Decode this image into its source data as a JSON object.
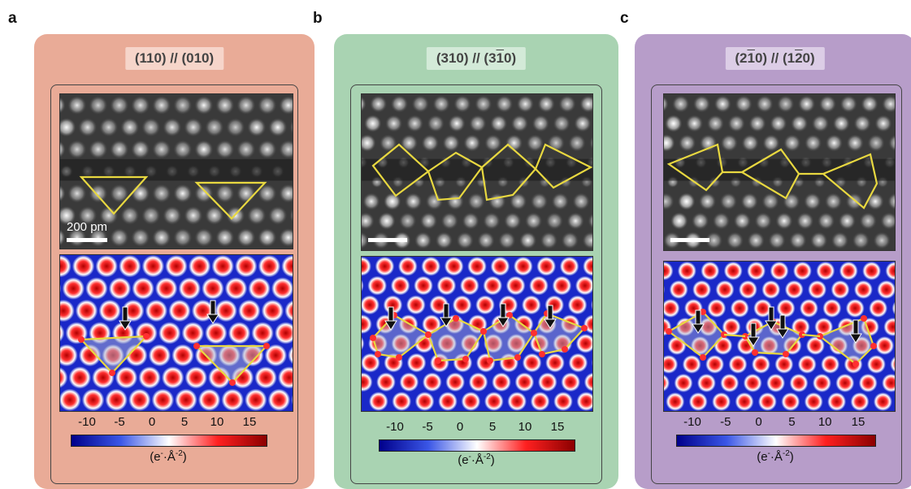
{
  "panels": [
    {
      "id": "a",
      "label": "a",
      "bg": "#e9ab97",
      "header_bg": "#f6d5ca",
      "title_parts": [
        "(110) // (010)"
      ],
      "scale_bar_label": "200 pm",
      "colorbar_ticks": [
        "-10",
        "-5",
        "0",
        "5",
        "10",
        "15"
      ],
      "unit_base": "(e",
      "unit_sup1": "-",
      "unit_mid": "·Å",
      "unit_sup2": "-2",
      "unit_end": ")"
    },
    {
      "id": "b",
      "label": "b",
      "bg": "#a9d3b2",
      "header_bg": "#d3ead8",
      "title_pre": "(310) // (3",
      "title_over": "1",
      "title_post": "0)",
      "scale_bar_label": "",
      "colorbar_ticks": [
        "-10",
        "-5",
        "0",
        "5",
        "10",
        "15"
      ],
      "unit_base": "(e",
      "unit_sup1": "-",
      "unit_mid": "·Å",
      "unit_sup2": "-2",
      "unit_end": ")"
    },
    {
      "id": "c",
      "label": "c",
      "bg": "#b79dc9",
      "header_bg": "#dccde6",
      "title_pre1": "(2",
      "title_over1": "1",
      "title_mid": "0) // (1",
      "title_over2": "2",
      "title_post": "0)",
      "scale_bar_label": "",
      "colorbar_ticks": [
        "-10",
        "-5",
        "0",
        "5",
        "10",
        "15"
      ],
      "unit_base": "(e",
      "unit_sup1": "-",
      "unit_mid": "·Å",
      "unit_sup2": "-2",
      "unit_end": ")"
    }
  ],
  "colorbar_colors": [
    "#00008b",
    "#3a56e6",
    "#ffffff",
    "#ff2020",
    "#8b0000"
  ],
  "polygon_color": "#e8d840"
}
